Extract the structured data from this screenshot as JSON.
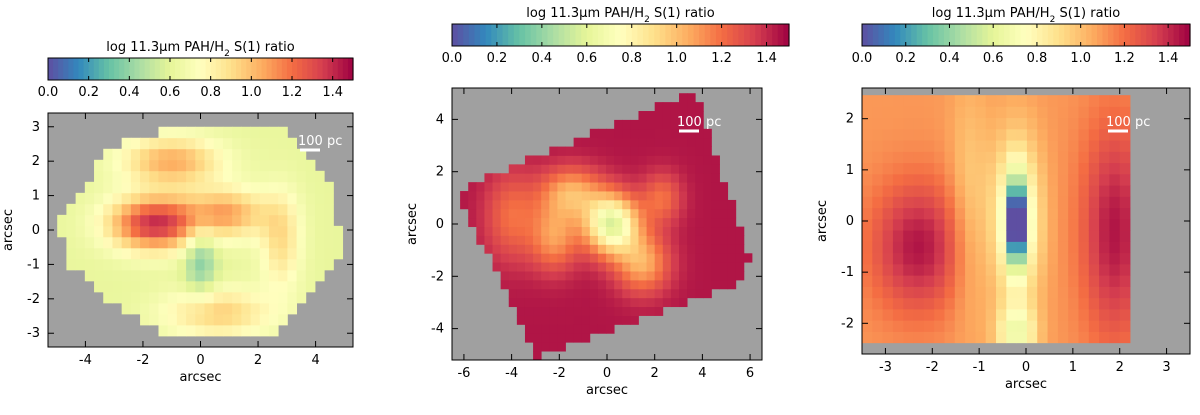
{
  "figure": {
    "colormap": [
      "#5e4fa2",
      "#3288bd",
      "#66c2a5",
      "#abdda4",
      "#e6f598",
      "#ffffbf",
      "#fee08b",
      "#fdae61",
      "#f46d43",
      "#d53e4f",
      "#9e0142"
    ],
    "nodata_color": "#a0a0a0"
  },
  "chart_data": [
    {
      "type": "heatmap",
      "colorbar": {
        "label_prefix": "log 11.3",
        "label_mu": "μ",
        "label_mid": "m PAH/H",
        "label_sub": "2",
        "label_suffix": " S(1) ratio",
        "range": [
          0.0,
          1.5
        ],
        "ticks": [
          "0.0",
          "0.2",
          "0.4",
          "0.6",
          "0.8",
          "1.0",
          "1.2",
          "1.4"
        ]
      },
      "scalebar_label": "100 pc",
      "xlabel": "arcsec",
      "ylabel": "arcsec",
      "xlim": [
        -5.3,
        5.3
      ],
      "ylim": [
        -3.4,
        3.4
      ],
      "xticks": [
        "-4",
        "-2",
        "0",
        "2",
        "4"
      ],
      "yticks": [
        "-3",
        "-2",
        "-1",
        "0",
        "1",
        "2",
        "3"
      ],
      "base_value": 0.62,
      "features": [
        {
          "x": -1.6,
          "y": 0.2,
          "value": 1.38,
          "sx": 1.1,
          "sy": 0.55
        },
        {
          "x": 0.9,
          "y": 0.5,
          "value": 1.05,
          "sx": 1.0,
          "sy": 0.5
        },
        {
          "x": -1.0,
          "y": 2.0,
          "value": 1.05,
          "sx": 1.2,
          "sy": 0.5
        },
        {
          "x": 0.6,
          "y": -2.4,
          "value": 0.95,
          "sx": 1.3,
          "sy": 0.5
        },
        {
          "x": 2.8,
          "y": -0.3,
          "value": 0.9,
          "sx": 0.5,
          "sy": 1.0
        },
        {
          "x": 0.0,
          "y": -0.8,
          "value": 0.35,
          "sx": 0.4,
          "sy": 0.8
        }
      ]
    },
    {
      "type": "heatmap",
      "colorbar": {
        "label_prefix": "log 11.3",
        "label_mu": "μ",
        "label_mid": "m PAH/H",
        "label_sub": "2",
        "label_suffix": " S(1) ratio",
        "range": [
          0.0,
          1.5
        ],
        "ticks": [
          "0.0",
          "0.2",
          "0.4",
          "0.6",
          "0.8",
          "1.0",
          "1.2",
          "1.4"
        ]
      },
      "scalebar_label": "100 pc",
      "xlabel": "arcsec",
      "ylabel": "arcsec",
      "xlim": [
        -6.5,
        6.5
      ],
      "ylim": [
        -5.2,
        5.2
      ],
      "xticks": [
        "-6",
        "-4",
        "-2",
        "0",
        "2",
        "4",
        "6"
      ],
      "yticks": [
        "-4",
        "-2",
        "0",
        "2",
        "4"
      ],
      "base_value": 1.45,
      "features": [
        {
          "x": 0.2,
          "y": 0.0,
          "value": 0.6,
          "sx": 0.8,
          "sy": 0.8
        },
        {
          "x": -1.5,
          "y": 1.2,
          "value": 1.05,
          "sx": 0.9,
          "sy": 0.7
        },
        {
          "x": -2.2,
          "y": -0.5,
          "value": 1.1,
          "sx": 0.7,
          "sy": 0.9
        },
        {
          "x": 1.5,
          "y": -1.5,
          "value": 1.05,
          "sx": 0.8,
          "sy": 0.8
        },
        {
          "x": -4.0,
          "y": 0.3,
          "value": 1.2,
          "sx": 0.8,
          "sy": 1.2
        },
        {
          "x": 2.3,
          "y": 1.0,
          "value": 1.2,
          "sx": 0.6,
          "sy": 0.7
        }
      ]
    },
    {
      "type": "heatmap",
      "colorbar": {
        "label_prefix": "log 11.3",
        "label_mu": "μ",
        "label_mid": "m PAH/H",
        "label_sub": "2",
        "label_suffix": " S(1) ratio",
        "range": [
          0.0,
          1.5
        ],
        "ticks": [
          "0.0",
          "0.2",
          "0.4",
          "0.6",
          "0.8",
          "1.0",
          "1.2",
          "1.4"
        ]
      },
      "scalebar_label": "100 pc",
      "xlabel": "arcsec",
      "ylabel": "arcsec",
      "xlim": [
        -3.5,
        3.5
      ],
      "ylim": [
        -2.6,
        2.6
      ],
      "xticks": [
        "-3",
        "-2",
        "-1",
        "0",
        "1",
        "2",
        "3"
      ],
      "yticks": [
        "-2",
        "-1",
        "0",
        "1",
        "2"
      ],
      "base_value": 1.1,
      "features": [
        {
          "x": -2.3,
          "y": -0.5,
          "value": 1.45,
          "sx": 0.7,
          "sy": 0.9
        },
        {
          "x": 1.9,
          "y": -0.2,
          "value": 1.45,
          "sx": 0.5,
          "sy": 1.5
        },
        {
          "x": -0.2,
          "y": 0.0,
          "value": 0.05,
          "sx": 0.13,
          "sy": 0.55
        },
        {
          "x": -0.2,
          "y": 0.0,
          "value": 0.6,
          "sx": 0.35,
          "sy": 1.1
        },
        {
          "x": -1.2,
          "y": 0.3,
          "value": 0.95,
          "sx": 0.3,
          "sy": 1.6
        },
        {
          "x": -0.2,
          "y": -2.2,
          "value": 0.7,
          "sx": 0.3,
          "sy": 0.4
        }
      ]
    }
  ]
}
